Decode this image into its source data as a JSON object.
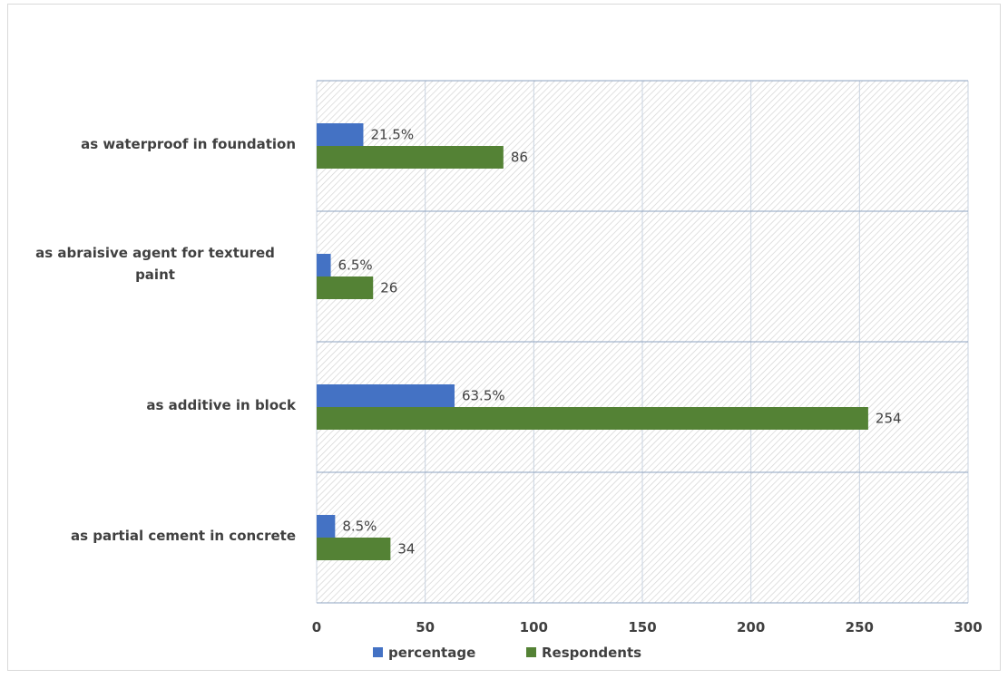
{
  "chart_data": {
    "type": "bar",
    "orientation": "horizontal",
    "categories": [
      "as partial cement in concrete",
      "as additive in block",
      "as abraisive agent for textured paint",
      "as waterproof in foundation"
    ],
    "series": [
      {
        "name": "percentage",
        "values": [
          8.5,
          63.5,
          6.5,
          21.5
        ],
        "labels": [
          "8.5%",
          "63.5%",
          "6.5%",
          "21.5%"
        ],
        "color": "#4472c4"
      },
      {
        "name": "Respondents",
        "values": [
          34,
          254,
          26,
          86
        ],
        "labels": [
          "34",
          "254",
          "26",
          "86"
        ],
        "color": "#548235"
      }
    ],
    "xlim": [
      0,
      300
    ],
    "xticks": [
      0,
      50,
      100,
      150,
      200,
      250,
      300
    ],
    "xtick_labels": [
      "0",
      "50",
      "100",
      "150",
      "200",
      "250",
      "300"
    ],
    "grid": true,
    "background_pattern": "diagonal-hatch",
    "legend_position": "bottom"
  }
}
